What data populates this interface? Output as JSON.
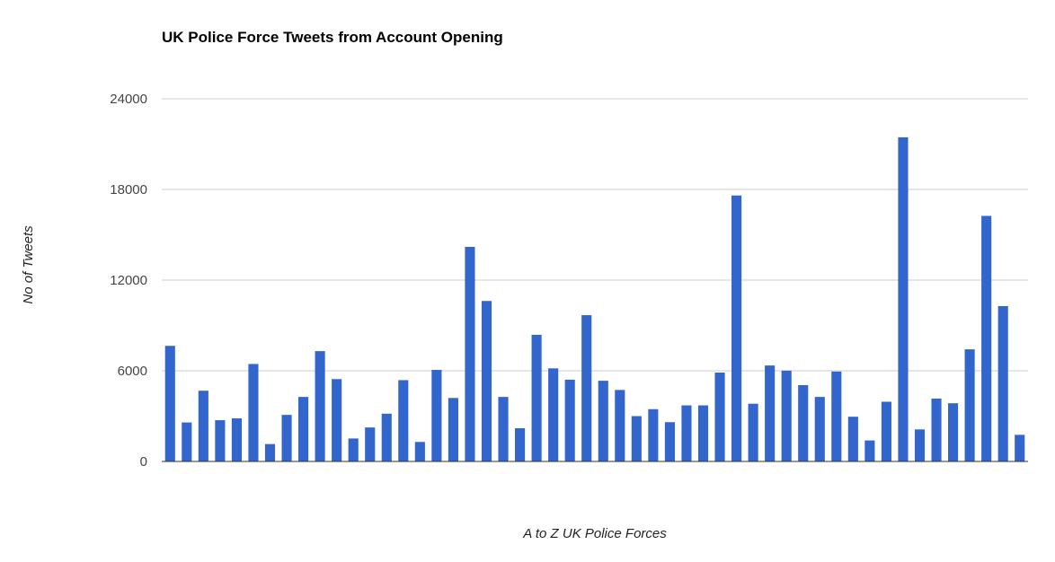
{
  "chart_data": {
    "type": "bar",
    "title": "UK Police Force Tweets from Account Opening",
    "xlabel": "A to Z UK Police Forces",
    "ylabel": "No of Tweets",
    "ylim": [
      0,
      24000
    ],
    "yticks": [
      "0",
      "6000",
      "12000",
      "18000",
      "24000"
    ],
    "grid": true,
    "legend": "none",
    "bar_color": "#3366cc",
    "values": [
      7650,
      2580,
      4680,
      2730,
      2850,
      6450,
      1150,
      3080,
      4270,
      7300,
      5450,
      1520,
      2250,
      3160,
      5380,
      1290,
      6060,
      4200,
      14200,
      10620,
      4270,
      2200,
      8380,
      6160,
      5410,
      9680,
      5340,
      4730,
      3000,
      3460,
      2600,
      3710,
      3710,
      5880,
      17600,
      3820,
      6350,
      6010,
      5050,
      4270,
      5950,
      2960,
      1390,
      3950,
      21450,
      2120,
      4160,
      3850,
      7420,
      16250,
      10280,
      1760
    ]
  }
}
